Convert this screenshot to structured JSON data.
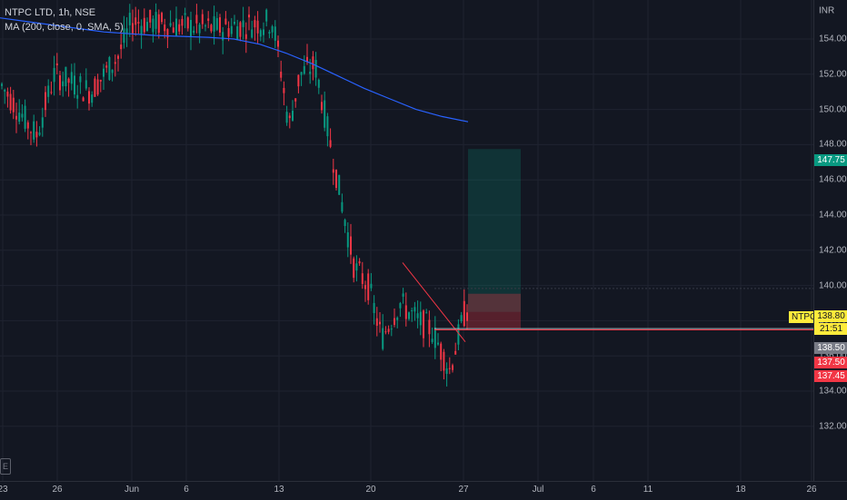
{
  "legend": {
    "symbol": "NTPC LTD, 1h, NSE",
    "indicator": "MA (200, close, 0, SMA, 5)"
  },
  "price_axis": {
    "currency": "INR",
    "ticks": [
      "154.00",
      "152.00",
      "150.00",
      "148.00",
      "146.00",
      "144.00",
      "142.00",
      "140.00",
      "138.00",
      "136.00",
      "134.00",
      "132.00"
    ],
    "tick_values": [
      154,
      152,
      150,
      148,
      146,
      144,
      142,
      140,
      138,
      136,
      134,
      132
    ],
    "badges": [
      {
        "label": "147.75",
        "value": 147.75,
        "color": "#089981"
      },
      {
        "label": "138.50",
        "value": 138.5,
        "color": "#787b86"
      },
      {
        "label": "137.50",
        "value": 137.5,
        "color": "#f23645"
      },
      {
        "label": "137.45",
        "value": 137.45,
        "color": "#f23645"
      }
    ],
    "last_price": {
      "symbol": "NTPC",
      "price": "138.80",
      "countdown": "21:51"
    }
  },
  "time_axis": {
    "labels": [
      "23",
      "26",
      "Jun",
      "6",
      "13",
      "20",
      "27",
      "Jul",
      "6",
      "11",
      "18",
      "26"
    ]
  },
  "colors": {
    "up": "#089981",
    "down": "#f23645",
    "ma": "#2962ff",
    "bg": "#131722"
  },
  "chart_data": {
    "type": "candlestick",
    "ma_values": [
      155.2,
      155.0,
      154.8,
      154.6,
      154.4,
      154.3,
      154.2,
      154.15,
      154.1,
      154.0,
      153.7,
      153.2,
      152.6,
      151.9,
      151.2,
      150.6,
      150.0,
      149.6,
      149.3
    ],
    "position": {
      "entry": 138.5,
      "target": 147.75,
      "stop": 137.45
    }
  }
}
